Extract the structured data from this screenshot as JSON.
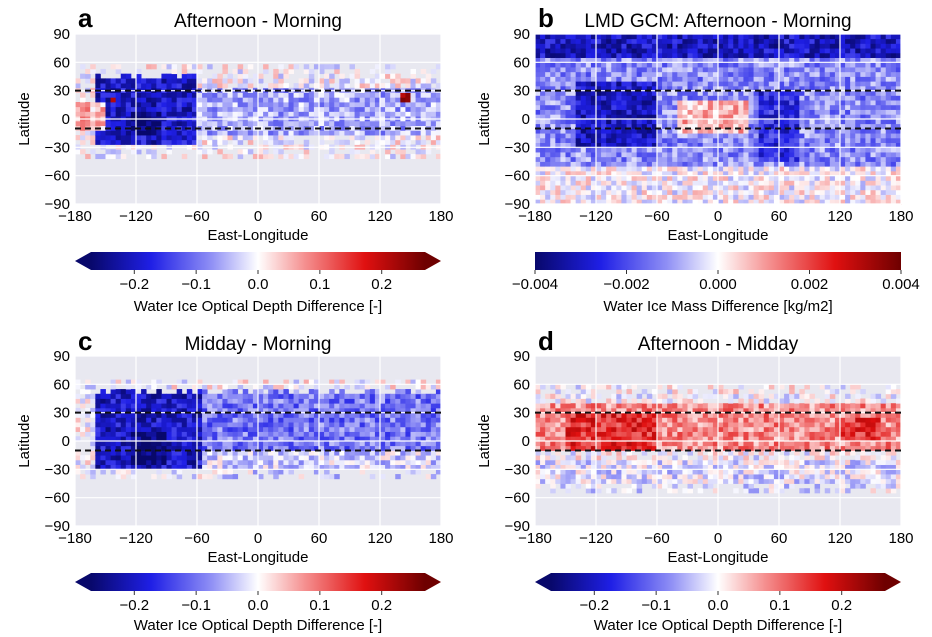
{
  "figure": {
    "panels": [
      {
        "letter": "a",
        "title": "Afternoon - Morning",
        "xlabel": "East-Longitude",
        "ylabel": "Latitude",
        "x_ticks": [
          "−180",
          "−120",
          "−60",
          "0",
          "60",
          "120",
          "180"
        ],
        "y_ticks": [
          "90",
          "60",
          "30",
          "0",
          "−30",
          "−60",
          "−90"
        ],
        "colorbar_label": "Water Ice Optical Depth Difference [-]",
        "colorbar_ticks": [
          "−0.2",
          "−0.1",
          "0.0",
          "0.1",
          "0.2"
        ]
      },
      {
        "letter": "b",
        "title": "LMD GCM: Afternoon - Morning",
        "xlabel": "East-Longitude",
        "ylabel": "Latitude",
        "x_ticks": [
          "−180",
          "−120",
          "−60",
          "0",
          "60",
          "120",
          "180"
        ],
        "y_ticks": [
          "90",
          "60",
          "30",
          "0",
          "−30",
          "−60",
          "−90"
        ],
        "colorbar_label": "Water Ice Mass Difference [kg/m2]",
        "colorbar_ticks": [
          "−0.004",
          "−0.002",
          "0.000",
          "0.002",
          "0.004"
        ]
      },
      {
        "letter": "c",
        "title": "Midday - Morning",
        "xlabel": "East-Longitude",
        "ylabel": "Latitude",
        "x_ticks": [
          "−180",
          "−120",
          "−60",
          "0",
          "60",
          "120",
          "180"
        ],
        "y_ticks": [
          "90",
          "60",
          "30",
          "0",
          "−30",
          "−60",
          "−90"
        ],
        "colorbar_label": "Water Ice Optical Depth Difference [-]",
        "colorbar_ticks": [
          "−0.2",
          "−0.1",
          "0.0",
          "0.1",
          "0.2"
        ]
      },
      {
        "letter": "d",
        "title": "Afternoon - Midday",
        "xlabel": "East-Longitude",
        "ylabel": "Latitude",
        "x_ticks": [
          "−180",
          "−120",
          "−60",
          "0",
          "60",
          "120",
          "180"
        ],
        "y_ticks": [
          "90",
          "60",
          "30",
          "0",
          "−30",
          "−60",
          "−90"
        ],
        "colorbar_label": "Water Ice Optical Depth Difference [-]",
        "colorbar_ticks": [
          "−0.2",
          "−0.1",
          "0.0",
          "0.1",
          "0.2"
        ]
      }
    ],
    "colors": {
      "background": "#e8e8f0",
      "grid": "#ffffff",
      "dashed_line": "#111111",
      "cmap_low": "#08086b",
      "cmap_mid": "#ffffff",
      "cmap_high": "#6e0000"
    }
  },
  "chart_data": [
    {
      "panel": "a",
      "type": "heatmap",
      "title": "Afternoon - Morning",
      "xlabel": "East-Longitude",
      "ylabel": "Latitude",
      "xlim": [
        -180,
        180
      ],
      "ylim": [
        -90,
        90
      ],
      "xticks": [
        -180,
        -120,
        -60,
        0,
        60,
        120,
        180
      ],
      "yticks": [
        -90,
        -60,
        -30,
        0,
        30,
        60,
        90
      ],
      "reference_lines_lat": [
        30,
        -10
      ],
      "colorbar": {
        "label": "Water Ice Optical Depth Difference [-]",
        "range": [
          -0.27,
          0.27
        ],
        "ticks": [
          -0.2,
          -0.1,
          0.0,
          0.1,
          0.2
        ],
        "extend": "both"
      },
      "data_extent_lat": [
        -42,
        55
      ],
      "regions": [
        {
          "lon": [
            -160,
            -60
          ],
          "lat": [
            -25,
            50
          ],
          "value": -0.2
        },
        {
          "lon": [
            -125,
            -95
          ],
          "lat": [
            -15,
            10
          ],
          "value": -0.26
        },
        {
          "lon": [
            -60,
            180
          ],
          "lat": [
            -15,
            35
          ],
          "value": -0.06
        },
        {
          "lon": [
            -145,
            -138
          ],
          "lat": [
            18,
            25
          ],
          "value": 0.22
        },
        {
          "lon": [
            140,
            150
          ],
          "lat": [
            20,
            28
          ],
          "value": 0.2
        },
        {
          "lon": [
            -180,
            -150
          ],
          "lat": [
            -10,
            20
          ],
          "value": 0.05
        }
      ],
      "grid": true
    },
    {
      "panel": "b",
      "type": "heatmap",
      "title": "LMD GCM: Afternoon - Morning",
      "xlabel": "East-Longitude",
      "ylabel": "Latitude",
      "xlim": [
        -180,
        180
      ],
      "ylim": [
        -90,
        90
      ],
      "xticks": [
        -180,
        -120,
        -60,
        0,
        60,
        120,
        180
      ],
      "yticks": [
        -90,
        -60,
        -30,
        0,
        30,
        60,
        90
      ],
      "reference_lines_lat": [
        30,
        -10
      ],
      "colorbar": {
        "label": "Water Ice Mass Difference [kg/m2]",
        "range": [
          -0.004,
          0.004
        ],
        "ticks": [
          -0.004,
          -0.002,
          0.0,
          0.002,
          0.004
        ],
        "extend": "neither"
      },
      "data_extent_lat": [
        -90,
        90
      ],
      "regions": [
        {
          "lon": [
            -180,
            180
          ],
          "lat": [
            65,
            90
          ],
          "value": -0.003
        },
        {
          "lon": [
            -180,
            180
          ],
          "lat": [
            -50,
            65
          ],
          "value": -0.0012
        },
        {
          "lon": [
            -140,
            -60
          ],
          "lat": [
            -30,
            40
          ],
          "value": -0.003
        },
        {
          "lon": [
            40,
            80
          ],
          "lat": [
            -45,
            30
          ],
          "value": -0.0025
        },
        {
          "lon": [
            -40,
            30
          ],
          "lat": [
            -15,
            20
          ],
          "value": 0.0008
        },
        {
          "lon": [
            -180,
            180
          ],
          "lat": [
            -90,
            -50
          ],
          "value": 0.0
        }
      ],
      "grid": true
    },
    {
      "panel": "c",
      "type": "heatmap",
      "title": "Midday - Morning",
      "xlabel": "East-Longitude",
      "ylabel": "Latitude",
      "xlim": [
        -180,
        180
      ],
      "ylim": [
        -90,
        90
      ],
      "xticks": [
        -180,
        -120,
        -60,
        0,
        60,
        120,
        180
      ],
      "yticks": [
        -90,
        -60,
        -30,
        0,
        30,
        60,
        90
      ],
      "reference_lines_lat": [
        30,
        -10
      ],
      "colorbar": {
        "label": "Water Ice Optical Depth Difference [-]",
        "range": [
          -0.27,
          0.27
        ],
        "ticks": [
          -0.2,
          -0.1,
          0.0,
          0.1,
          0.2
        ],
        "extend": "both"
      },
      "data_extent_lat": [
        -40,
        62
      ],
      "regions": [
        {
          "lon": [
            -160,
            -55
          ],
          "lat": [
            -30,
            55
          ],
          "value": -0.2
        },
        {
          "lon": [
            -125,
            -90
          ],
          "lat": [
            -25,
            10
          ],
          "value": -0.27
        },
        {
          "lon": [
            -55,
            180
          ],
          "lat": [
            -10,
            55
          ],
          "value": -0.1
        },
        {
          "lon": [
            -55,
            180
          ],
          "lat": [
            -40,
            -10
          ],
          "value": -0.03
        }
      ],
      "grid": true
    },
    {
      "panel": "d",
      "type": "heatmap",
      "title": "Afternoon - Midday",
      "xlabel": "East-Longitude",
      "ylabel": "Latitude",
      "xlim": [
        -180,
        180
      ],
      "ylim": [
        -90,
        90
      ],
      "xticks": [
        -180,
        -120,
        -60,
        0,
        60,
        120,
        180
      ],
      "yticks": [
        -90,
        -60,
        -30,
        0,
        30,
        60,
        90
      ],
      "reference_lines_lat": [
        30,
        -10
      ],
      "colorbar": {
        "label": "Water Ice Optical Depth Difference [-]",
        "range": [
          -0.27,
          0.27
        ],
        "ticks": [
          -0.2,
          -0.1,
          0.0,
          0.1,
          0.2
        ],
        "extend": "both"
      },
      "data_extent_lat": [
        -55,
        60
      ],
      "regions": [
        {
          "lon": [
            -180,
            180
          ],
          "lat": [
            -10,
            40
          ],
          "value": 0.08
        },
        {
          "lon": [
            -150,
            -60
          ],
          "lat": [
            -10,
            30
          ],
          "value": 0.15
        },
        {
          "lon": [
            120,
            160
          ],
          "lat": [
            0,
            25
          ],
          "value": 0.14
        },
        {
          "lon": [
            40,
            100
          ],
          "lat": [
            -40,
            -25
          ],
          "value": -0.08
        },
        {
          "lon": [
            -180,
            180
          ],
          "lat": [
            -55,
            -20
          ],
          "value": -0.02
        }
      ],
      "grid": true
    }
  ]
}
